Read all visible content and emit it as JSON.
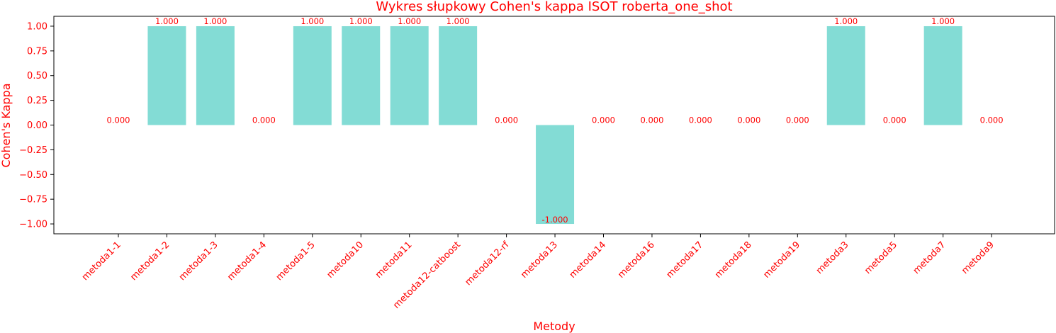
{
  "chart_data": {
    "type": "bar",
    "title": "Wykres słupkowy Cohen's kappa ISOT roberta_one_shot",
    "xlabel": "Metody",
    "ylabel": "Cohen's Kappa",
    "categories": [
      "metoda1-1",
      "metoda1-2",
      "metoda1-3",
      "metoda1-4",
      "metoda1-5",
      "metoda10",
      "metoda11",
      "metoda12-catboost",
      "metoda12-rf",
      "metoda13",
      "metoda14",
      "metoda16",
      "metoda17",
      "metoda18",
      "metoda19",
      "metoda3",
      "metoda5",
      "metoda7",
      "metoda9"
    ],
    "values": [
      0,
      1,
      1,
      0,
      1,
      1,
      1,
      1,
      0,
      -1,
      0,
      0,
      0,
      0,
      0,
      1,
      0,
      1,
      0
    ],
    "value_labels": [
      "0.000",
      "1.000",
      "1.000",
      "0.000",
      "1.000",
      "1.000",
      "1.000",
      "1.000",
      "0.000",
      "-1.000",
      "0.000",
      "0.000",
      "0.000",
      "0.000",
      "0.000",
      "1.000",
      "0.000",
      "1.000",
      "0.000"
    ],
    "yticks": [
      "1.00",
      "0.75",
      "0.50",
      "0.25",
      "0.00",
      "−0.25",
      "−0.50",
      "−0.75",
      "−1.00"
    ],
    "ytick_values": [
      1,
      0.75,
      0.5,
      0.25,
      0,
      -0.25,
      -0.5,
      -0.75,
      -1
    ],
    "ylim": [
      -1.1,
      1.1
    ],
    "grid": false,
    "bar_color": "#83dcd5",
    "text_color": "#ff0000"
  }
}
